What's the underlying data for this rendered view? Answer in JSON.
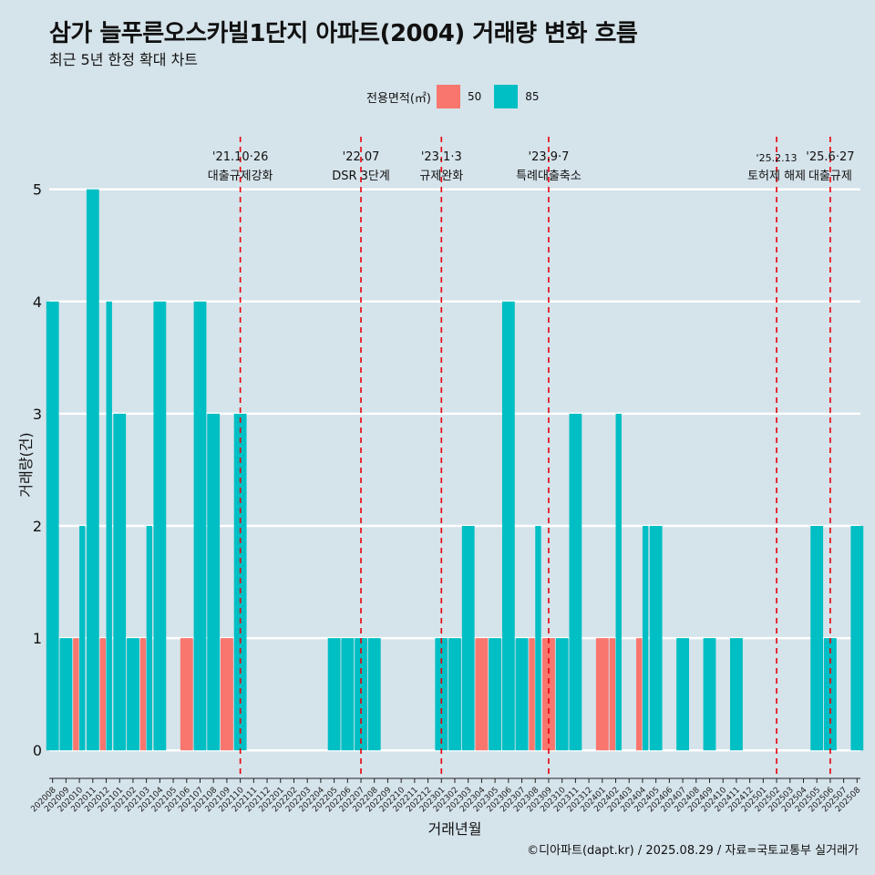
{
  "header": {
    "title": "삼가 늘푸른오스카빌1단지 아파트(2004) 거래량 변화 흐름",
    "subtitle": "최근 5년 한정 확대 차트"
  },
  "legend": {
    "title": "전용면적(㎡)",
    "items": [
      {
        "label": "50",
        "color": "#f8766d"
      },
      {
        "label": "85",
        "color": "#00bfc4"
      }
    ]
  },
  "caption": "©디아파트(dapt.kr) / 2025.08.29 / 자료=국토교통부 실거래가",
  "chart_data": {
    "type": "bar",
    "title": "삼가 늘푸른오스카빌1단지 아파트(2004) 거래량 변화 흐름",
    "xlabel": "거래년월",
    "ylabel": "거래량(건)",
    "ylim": [
      -0.25,
      5.55
    ],
    "yticks": [
      0,
      1,
      2,
      3,
      4,
      5
    ],
    "categories": [
      "202008",
      "202009",
      "202010",
      "202011",
      "202012",
      "202101",
      "202102",
      "202103",
      "202104",
      "202105",
      "202106",
      "202107",
      "202108",
      "202109",
      "202110",
      "202111",
      "202112",
      "202201",
      "202202",
      "202203",
      "202204",
      "202205",
      "202206",
      "202207",
      "202208",
      "202209",
      "202210",
      "202211",
      "202212",
      "202301",
      "202302",
      "202303",
      "202304",
      "202305",
      "202306",
      "202307",
      "202308",
      "202309",
      "202310",
      "202311",
      "202312",
      "202401",
      "202402",
      "202403",
      "202404",
      "202405",
      "202406",
      "202407",
      "202408",
      "202409",
      "202410",
      "202411",
      "202412",
      "202501",
      "202502",
      "202503",
      "202504",
      "202505",
      "202506",
      "202507",
      "202508"
    ],
    "series": [
      {
        "name": "50",
        "color": "#f8766d",
        "values": [
          0,
          0,
          1,
          0,
          1,
          0,
          0,
          1,
          0,
          0,
          1,
          0,
          0,
          1,
          0,
          0,
          0,
          0,
          0,
          0,
          0,
          0,
          0,
          0,
          0,
          0,
          0,
          0,
          0,
          0,
          0,
          0,
          1,
          0,
          0,
          0,
          1,
          1,
          0,
          0,
          0,
          1,
          1,
          0,
          1,
          0,
          0,
          0,
          0,
          0,
          0,
          0,
          0,
          0,
          0,
          0,
          0,
          0,
          0,
          0,
          0
        ]
      },
      {
        "name": "85",
        "color": "#00bfc4",
        "values": [
          4,
          1,
          2,
          5,
          4,
          3,
          1,
          2,
          4,
          0,
          0,
          4,
          3,
          0,
          3,
          0,
          0,
          0,
          0,
          0,
          0,
          1,
          1,
          1,
          1,
          0,
          0,
          0,
          0,
          1,
          1,
          2,
          0,
          1,
          4,
          1,
          2,
          0,
          1,
          3,
          0,
          0,
          3,
          0,
          2,
          2,
          0,
          1,
          0,
          1,
          0,
          1,
          0,
          0,
          0,
          0,
          0,
          2,
          1,
          0,
          2
        ]
      }
    ],
    "events": [
      {
        "label": "'21.10·26",
        "desc": "대출규제강화",
        "at": "202110"
      },
      {
        "label": "'22.07",
        "desc": "DSR 3단계",
        "at": "202207"
      },
      {
        "label": "'23.1·3",
        "desc": "규제완화",
        "at": "202301"
      },
      {
        "label": "'23.9·7",
        "desc": "특례대출축소",
        "at": "202309"
      },
      {
        "label": "'25.2.13",
        "desc": "토허제 해제",
        "at": "202502"
      },
      {
        "label": "'25.6·27",
        "desc": "대출규제",
        "at": "202506"
      }
    ]
  }
}
